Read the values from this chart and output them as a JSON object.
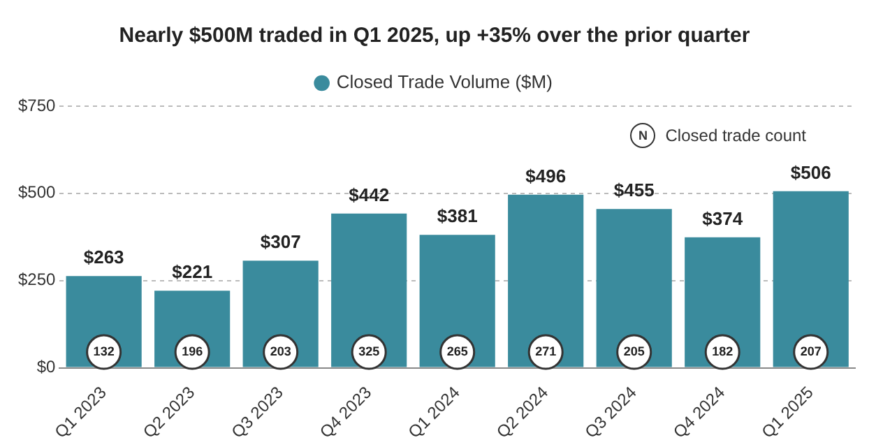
{
  "chart_data": {
    "type": "bar",
    "title": "Nearly $500M traded in Q1 2025, up +35% over the prior quarter",
    "categories": [
      "Q1 2023",
      "Q2 2023",
      "Q3 2023",
      "Q4 2023",
      "Q1 2024",
      "Q2 2024",
      "Q3 2024",
      "Q4 2024",
      "Q1 2025"
    ],
    "series": [
      {
        "name": "Closed Trade Volume ($M)",
        "color": "#3a8b9d",
        "values": [
          263,
          221,
          307,
          442,
          381,
          496,
          455,
          374,
          506
        ],
        "value_labels": [
          "$263",
          "$221",
          "$307",
          "$442",
          "$381",
          "$496",
          "$455",
          "$374",
          "$506"
        ]
      }
    ],
    "ylim": [
      0,
      750
    ],
    "yticks": [
      {
        "value": 0,
        "label": "$0"
      },
      {
        "value": 250,
        "label": "$250"
      },
      {
        "value": 500,
        "label": "$500"
      },
      {
        "value": 750,
        "label": "$750"
      }
    ],
    "grid": "y",
    "legend": "top",
    "annotations": [
      "N",
      "Closed trade count",
      {
        "text": "132",
        "x": "Q1 2023",
        "y": 45
      },
      {
        "text": "196",
        "x": "Q2 2023",
        "y": 45
      },
      {
        "text": "203",
        "x": "Q3 2023",
        "y": 45
      },
      {
        "text": "325",
        "x": "Q4 2023",
        "y": 45
      },
      {
        "text": "265",
        "x": "Q1 2024",
        "y": 45
      },
      {
        "text": "271",
        "x": "Q2 2024",
        "y": 45
      },
      {
        "text": "205",
        "x": "Q3 2024",
        "y": 45
      },
      {
        "text": "182",
        "x": "Q4 2024",
        "y": 45
      },
      {
        "text": "207",
        "x": "Q1 2025",
        "y": 45
      }
    ]
  }
}
